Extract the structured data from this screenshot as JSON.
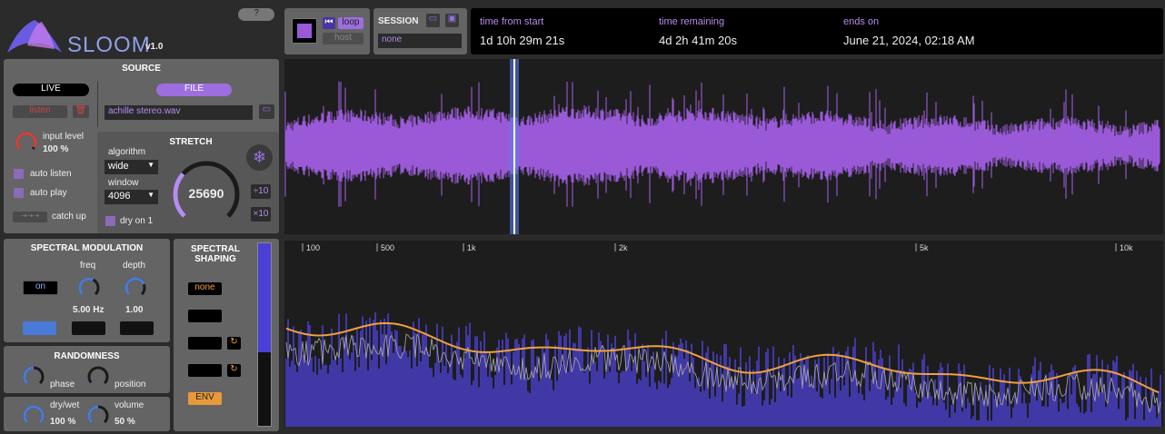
{
  "header": {
    "app_name": "SLOOM",
    "version": "v1.0",
    "help": "?"
  },
  "transport": {
    "loop": "loop",
    "host": "host"
  },
  "session": {
    "title": "SESSION",
    "name": "none"
  },
  "status": {
    "time_from_start": {
      "label": "time from start",
      "value": "1d 10h 29m 21s"
    },
    "time_remaining": {
      "label": "time remaining",
      "value": "4d 2h 41m 20s"
    },
    "ends_on": {
      "label": "ends on",
      "value": "June 21, 2024, 02:18 AM"
    }
  },
  "source": {
    "title": "SOURCE",
    "live": "LIVE",
    "file": "FILE",
    "listen": "listen",
    "file_name": "achille stereo.wav",
    "input_level": {
      "label": "input level",
      "value": "100 %"
    },
    "auto_listen": "auto listen",
    "auto_play": "auto play",
    "catch_up": "catch up"
  },
  "stretch": {
    "title": "STRETCH",
    "algorithm": {
      "label": "algorithm",
      "value": "wide"
    },
    "window": {
      "label": "window",
      "value": "4096"
    },
    "amount": "25690",
    "div10": "÷10",
    "mul10": "×10",
    "dry_on": "dry on 1"
  },
  "spectral_modulation": {
    "title": "SPECTRAL MODULATION",
    "on": "on",
    "freq": {
      "label": "freq",
      "value": "5.00 Hz"
    },
    "depth": {
      "label": "depth",
      "value": "1.00"
    }
  },
  "randomness": {
    "title": "RANDOMNESS",
    "phase": "phase",
    "position": "position"
  },
  "output": {
    "dry_wet": {
      "label": "dry/wet",
      "value": "100 %"
    },
    "volume": {
      "label": "volume",
      "value": "50 %"
    }
  },
  "spectral_shaping": {
    "title": "SPECTRAL SHAPING",
    "none": "none",
    "env": "ENV"
  },
  "spectrum": {
    "freq_labels": [
      "100",
      "500",
      "1k",
      "2k",
      "5k",
      "10k"
    ]
  }
}
